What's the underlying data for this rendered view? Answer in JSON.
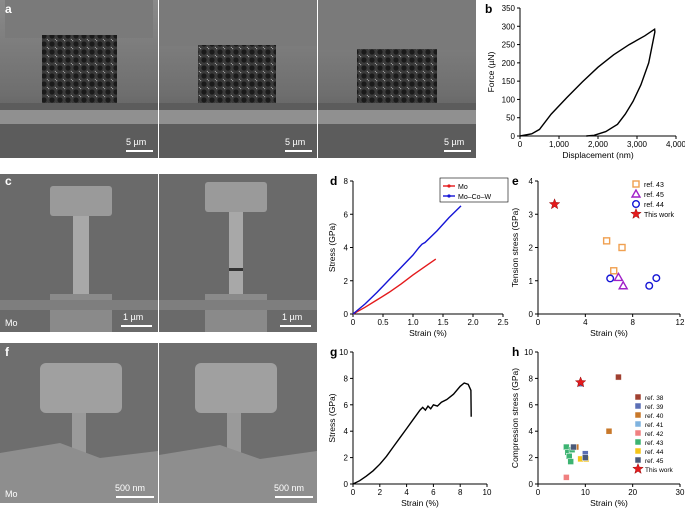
{
  "panel_letters": {
    "a": "a",
    "b": "b",
    "c": "c",
    "d": "d",
    "e": "e",
    "f": "f",
    "g": "g",
    "h": "h"
  },
  "panel_a": {
    "scalebars": [
      "5 µm",
      "5 µm",
      "5 µm"
    ]
  },
  "panel_c": {
    "scalebars": [
      "1 µm",
      "1 µm"
    ],
    "material": "Mo"
  },
  "panel_f": {
    "scalebars": [
      "500 nm",
      "500 nm"
    ],
    "material": "Mo"
  },
  "colors": {
    "red": "#e41a1c",
    "blue": "#1515d6",
    "orange": "#f0a050",
    "purple": "#a020c8",
    "black": "#000000"
  },
  "chart_data": [
    {
      "id": "b",
      "type": "line",
      "xlabel": "Displacement (nm)",
      "ylabel": "Force (µN)",
      "xlim": [
        0,
        4000
      ],
      "ylim": [
        0,
        350
      ],
      "xticks": [
        "0",
        "1,000",
        "2,000",
        "3,000",
        "4,000"
      ],
      "yticks": [
        "0",
        "50",
        "100",
        "150",
        "200",
        "250",
        "300",
        "350"
      ],
      "series": [
        {
          "values": [
            [
              0,
              0
            ],
            [
              300,
              6
            ],
            [
              500,
              18
            ],
            [
              800,
              60
            ],
            [
              1200,
              105
            ],
            [
              1600,
              148
            ],
            [
              2000,
              188
            ],
            [
              2400,
              222
            ],
            [
              2800,
              250
            ],
            [
              3200,
              274
            ],
            [
              3450,
              292
            ],
            [
              3460,
              285
            ],
            [
              3300,
              200
            ],
            [
              3100,
              140
            ],
            [
              2900,
              95
            ],
            [
              2700,
              60
            ],
            [
              2500,
              32
            ],
            [
              2200,
              12
            ],
            [
              1900,
              2
            ],
            [
              1700,
              0
            ]
          ]
        }
      ]
    },
    {
      "id": "d",
      "type": "line",
      "xlabel": "Strain (%)",
      "ylabel": "Stress (GPa)",
      "xlim": [
        0,
        2.5
      ],
      "ylim": [
        0,
        8
      ],
      "xticks": [
        "0",
        "0.5",
        "1.0",
        "1.5",
        "2.0",
        "2.5"
      ],
      "yticks": [
        "0",
        "2",
        "4",
        "6",
        "8"
      ],
      "series": [
        {
          "name": "Mo",
          "color": "#e41a1c",
          "values": [
            [
              0,
              0
            ],
            [
              0.2,
              0.4
            ],
            [
              0.4,
              0.85
            ],
            [
              0.6,
              1.3
            ],
            [
              0.8,
              1.8
            ],
            [
              1.0,
              2.35
            ],
            [
              1.2,
              2.85
            ],
            [
              1.38,
              3.3
            ]
          ]
        },
        {
          "name": "Mo–Co–W",
          "color": "#1515d6",
          "values": [
            [
              0,
              0
            ],
            [
              0.2,
              0.6
            ],
            [
              0.4,
              1.3
            ],
            [
              0.6,
              2.05
            ],
            [
              0.8,
              2.8
            ],
            [
              1.0,
              3.55
            ],
            [
              1.1,
              4.0
            ],
            [
              1.15,
              4.2
            ],
            [
              1.2,
              4.3
            ],
            [
              1.4,
              5.0
            ],
            [
              1.6,
              5.8
            ],
            [
              1.8,
              6.5
            ]
          ]
        }
      ]
    },
    {
      "id": "e",
      "type": "scatter",
      "xlabel": "Strain (%)",
      "ylabel": "Tension stress (GPa)",
      "xlim": [
        0,
        12
      ],
      "ylim": [
        0,
        4
      ],
      "xticks": [
        "0",
        "4",
        "8",
        "12"
      ],
      "yticks": [
        "0",
        "1",
        "2",
        "3",
        "4"
      ],
      "series": [
        {
          "name": "ref. 43",
          "marker": "square",
          "color": "#f0a050",
          "values": [
            [
              5.8,
              2.2
            ],
            [
              6.4,
              1.3
            ],
            [
              7.1,
              2.0
            ]
          ]
        },
        {
          "name": "ref. 45",
          "marker": "triangle",
          "color": "#a020c8",
          "values": [
            [
              6.8,
              1.1
            ],
            [
              7.2,
              0.85
            ]
          ]
        },
        {
          "name": "ref. 44",
          "marker": "circle",
          "color": "#1515d6",
          "values": [
            [
              6.1,
              1.07
            ],
            [
              9.4,
              0.85
            ],
            [
              10.0,
              1.08
            ]
          ]
        },
        {
          "name": "This work",
          "marker": "star",
          "color": "#e41a1c",
          "values": [
            [
              1.4,
              3.3
            ]
          ]
        }
      ]
    },
    {
      "id": "g",
      "type": "line",
      "xlabel": "Strain (%)",
      "ylabel": "Stress (GPa)",
      "xlim": [
        0,
        10
      ],
      "ylim": [
        0,
        10
      ],
      "xticks": [
        "0",
        "2",
        "4",
        "6",
        "8",
        "10"
      ],
      "yticks": [
        "0",
        "2",
        "4",
        "6",
        "8",
        "10"
      ],
      "series": [
        {
          "values": [
            [
              0,
              0
            ],
            [
              0.5,
              0.25
            ],
            [
              1,
              0.6
            ],
            [
              1.5,
              1.0
            ],
            [
              2,
              1.5
            ],
            [
              2.5,
              2.1
            ],
            [
              3,
              2.8
            ],
            [
              3.5,
              3.5
            ],
            [
              4,
              4.2
            ],
            [
              4.5,
              4.9
            ],
            [
              5.0,
              5.6
            ],
            [
              5.2,
              5.8
            ],
            [
              5.4,
              5.6
            ],
            [
              5.6,
              5.9
            ],
            [
              5.8,
              5.7
            ],
            [
              6.0,
              6.0
            ],
            [
              6.3,
              5.9
            ],
            [
              6.6,
              6.2
            ],
            [
              7.0,
              6.4
            ],
            [
              7.5,
              6.8
            ],
            [
              8.0,
              7.4
            ],
            [
              8.3,
              7.65
            ],
            [
              8.6,
              7.55
            ],
            [
              8.8,
              7.1
            ],
            [
              8.82,
              5.1
            ]
          ]
        }
      ]
    },
    {
      "id": "h",
      "type": "scatter",
      "xlabel": "Strain (%)",
      "ylabel": "Compression stress (GPa)",
      "xlim": [
        0,
        30
      ],
      "ylim": [
        0,
        10
      ],
      "xticks": [
        "0",
        "10",
        "20",
        "30"
      ],
      "yticks": [
        "0",
        "2",
        "4",
        "6",
        "8",
        "10"
      ],
      "series": [
        {
          "name": "ref. 38",
          "color": "#a04030",
          "values": [
            [
              17,
              8.1
            ]
          ]
        },
        {
          "name": "ref. 39",
          "color": "#5b6fb5",
          "values": [
            [
              9,
              7.6
            ],
            [
              10,
              2.3
            ]
          ]
        },
        {
          "name": "ref. 40",
          "color": "#c8782a",
          "values": [
            [
              15,
              4.0
            ],
            [
              8,
              2.8
            ]
          ]
        },
        {
          "name": "ref. 41",
          "color": "#7fb3df",
          "values": [
            [
              9.5,
              1.9
            ]
          ]
        },
        {
          "name": "ref. 42",
          "color": "#f08080",
          "values": [
            [
              6,
              0.5
            ]
          ]
        },
        {
          "name": "ref. 43",
          "color": "#3cb371",
          "values": [
            [
              6,
              2.8
            ],
            [
              6.3,
              2.4
            ],
            [
              6.6,
              2.1
            ],
            [
              6.9,
              1.7
            ],
            [
              7.2,
              2.6
            ]
          ]
        },
        {
          "name": "ref. 44",
          "color": "#f5c518",
          "values": [
            [
              9,
              1.9
            ],
            [
              10.2,
              1.9
            ]
          ]
        },
        {
          "name": "ref. 45",
          "color": "#4a5a7a",
          "values": [
            [
              7.5,
              2.8
            ],
            [
              10,
              2.0
            ]
          ]
        },
        {
          "name": "This work",
          "color": "#e41a1c",
          "marker": "star",
          "values": [
            [
              9,
              7.7
            ]
          ]
        }
      ]
    }
  ]
}
